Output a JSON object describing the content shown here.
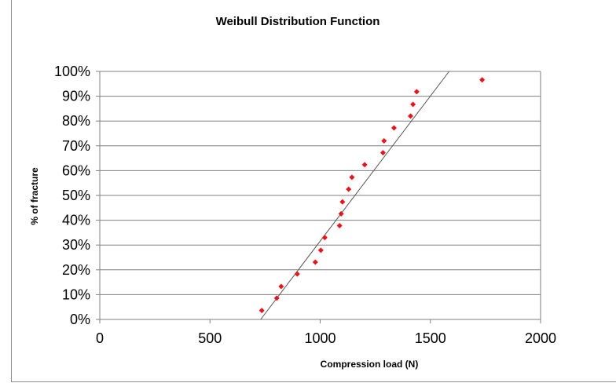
{
  "chart_data": {
    "type": "scatter",
    "title": "Weibull Distribution Function",
    "xlabel": "Compression load (N)",
    "ylabel": "% of fracture",
    "xlim": [
      0,
      2000
    ],
    "ylim": [
      0,
      100
    ],
    "x_ticks": [
      "0",
      "500",
      "1000",
      "1500",
      "2000"
    ],
    "x_tick_values": [
      0,
      500,
      1000,
      1500,
      2000
    ],
    "y_ticks": [
      "0%",
      "10%",
      "20%",
      "30%",
      "40%",
      "50%",
      "60%",
      "70%",
      "80%",
      "90%",
      "100%"
    ],
    "y_tick_values": [
      0,
      10,
      20,
      30,
      40,
      50,
      60,
      70,
      80,
      90,
      100
    ],
    "grid": "horizontal",
    "legend": "none",
    "marker_color": "#e8141b",
    "line_color": "#555555",
    "series": [
      {
        "type": "scatter",
        "points": [
          {
            "x": 735,
            "y": 3.6
          },
          {
            "x": 803,
            "y": 8.6
          },
          {
            "x": 823,
            "y": 13.3
          },
          {
            "x": 896,
            "y": 18.3
          },
          {
            "x": 978,
            "y": 23.1
          },
          {
            "x": 1003,
            "y": 27.9
          },
          {
            "x": 1021,
            "y": 33.0
          },
          {
            "x": 1088,
            "y": 37.8
          },
          {
            "x": 1095,
            "y": 42.6
          },
          {
            "x": 1101,
            "y": 47.4
          },
          {
            "x": 1129,
            "y": 52.5
          },
          {
            "x": 1144,
            "y": 57.3
          },
          {
            "x": 1202,
            "y": 62.4
          },
          {
            "x": 1285,
            "y": 67.2
          },
          {
            "x": 1290,
            "y": 72.0
          },
          {
            "x": 1335,
            "y": 77.2
          },
          {
            "x": 1410,
            "y": 82.0
          },
          {
            "x": 1421,
            "y": 86.7
          },
          {
            "x": 1438,
            "y": 91.8
          },
          {
            "x": 1735,
            "y": 96.6
          }
        ]
      },
      {
        "type": "line",
        "points": [
          {
            "x": 730,
            "y": 0
          },
          {
            "x": 1585,
            "y": 100
          }
        ]
      }
    ]
  }
}
